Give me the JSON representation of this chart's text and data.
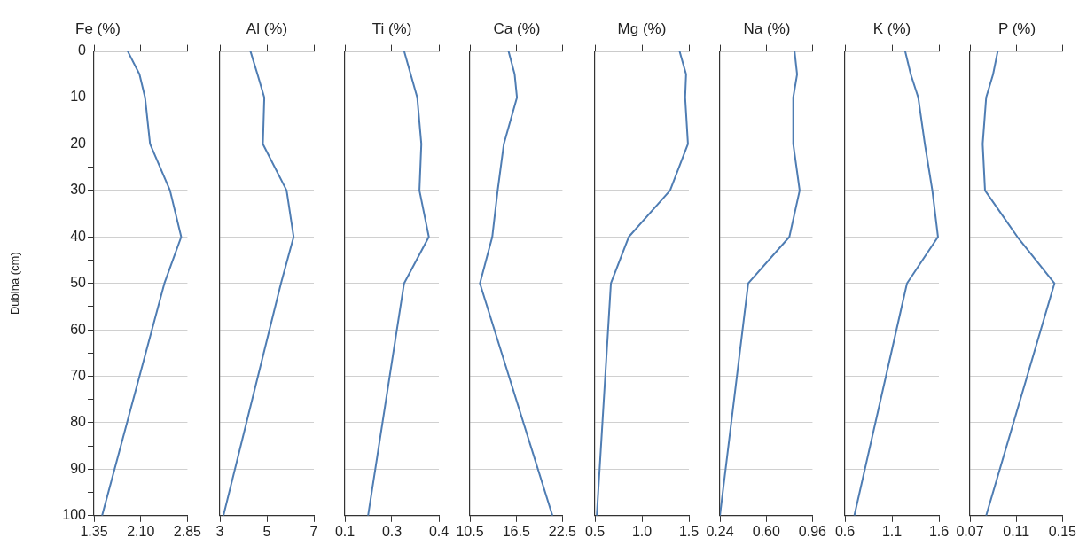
{
  "chart_data": [
    {
      "type": "line",
      "title": "Fe (%)",
      "ylabel": "Dubina (cm)",
      "orientation": "horizontal",
      "x": [
        0,
        5,
        10,
        20,
        30,
        40,
        50,
        100
      ],
      "color": "#4f7db3",
      "values": [
        1.89,
        2.08,
        2.17,
        2.25,
        2.57,
        2.75,
        2.48,
        1.48
      ],
      "xlim": [
        1.35,
        2.85
      ],
      "xticks": [
        1.35,
        {
          "value": 2.1,
          "label": "2.10"
        },
        2.85
      ],
      "ylim": [
        100,
        0
      ],
      "yticks": [
        0,
        {
          "value": 5,
          "label": null
        },
        10,
        {
          "value": 15,
          "label": null
        },
        20,
        {
          "value": 25,
          "label": null
        },
        30,
        {
          "value": 35,
          "label": null
        },
        40,
        {
          "value": 45,
          "label": null
        },
        50,
        {
          "value": 55,
          "label": null
        },
        60,
        {
          "value": 65,
          "label": null
        },
        70,
        {
          "value": 75,
          "label": null
        },
        80,
        {
          "value": 85,
          "label": null
        },
        90,
        {
          "value": 95,
          "label": null
        },
        100
      ],
      "grid": "y"
    },
    {
      "type": "line",
      "title": "Al (%)",
      "orientation": "horizontal",
      "x": [
        0,
        5,
        10,
        20,
        30,
        40,
        50,
        100
      ],
      "color": "#4f7db3",
      "values": [
        4.3,
        4.6,
        4.89,
        4.83,
        5.84,
        6.14,
        5.6,
        3.15
      ],
      "xlim": [
        3,
        7
      ],
      "xticks": [
        3,
        5,
        7
      ],
      "ylim": [
        100,
        0
      ],
      "yticks": [
        0,
        10,
        20,
        30,
        40,
        50,
        60,
        70,
        80,
        90,
        100
      ],
      "grid": "y",
      "tick_labels": "x"
    },
    {
      "type": "line",
      "title": "Ti (%)",
      "orientation": "horizontal",
      "x": [
        0,
        5,
        10,
        20,
        30,
        40,
        50,
        100
      ],
      "color": "#4f7db3",
      "values": [
        0.289,
        0.31,
        0.331,
        0.344,
        0.338,
        0.368,
        0.289,
        0.174
      ],
      "xlim": [
        0.1,
        0.4
      ],
      "xticks": [
        0.1,
        {
          "value": 0.25,
          "label": "0.3"
        },
        0.4
      ],
      "ylim": [
        100,
        0
      ],
      "yticks": [
        0,
        10,
        20,
        30,
        40,
        50,
        60,
        70,
        80,
        90,
        100
      ],
      "grid": "y",
      "tick_labels": "x"
    },
    {
      "type": "line",
      "title": "Ca (%)",
      "orientation": "horizontal",
      "x": [
        0,
        5,
        10,
        20,
        30,
        40,
        50,
        100
      ],
      "color": "#4f7db3",
      "values": [
        15.5,
        16.3,
        16.6,
        14.9,
        14.1,
        13.4,
        11.8,
        21.2
      ],
      "xlim": [
        10.5,
        22.5
      ],
      "xticks": [
        10.5,
        16.5,
        22.5
      ],
      "ylim": [
        100,
        0
      ],
      "yticks": [
        0,
        10,
        20,
        30,
        40,
        50,
        60,
        70,
        80,
        90,
        100
      ],
      "grid": "y",
      "tick_labels": "x"
    },
    {
      "type": "line",
      "title": "Mg (%)",
      "orientation": "horizontal",
      "x": [
        0,
        5,
        10,
        20,
        30,
        40,
        50,
        100
      ],
      "color": "#4f7db3",
      "values": [
        1.4,
        1.47,
        1.46,
        1.49,
        1.3,
        0.86,
        0.67,
        0.52
      ],
      "xlim": [
        0.5,
        1.5
      ],
      "xticks": [
        0.5,
        {
          "value": 1,
          "label": "1.0"
        },
        1.5
      ],
      "ylim": [
        100,
        0
      ],
      "yticks": [
        0,
        10,
        20,
        30,
        40,
        50,
        60,
        70,
        80,
        90,
        100
      ],
      "grid": "y",
      "tick_labels": "x"
    },
    {
      "type": "line",
      "title": "Na (%)",
      "orientation": "horizontal",
      "x": [
        0,
        5,
        10,
        20,
        30,
        40,
        50,
        100
      ],
      "color": "#4f7db3",
      "values": [
        0.82,
        0.84,
        0.81,
        0.81,
        0.86,
        0.78,
        0.46,
        0.24
      ],
      "xlim": [
        0.24,
        0.96
      ],
      "xticks": [
        0.24,
        {
          "value": 0.6,
          "label": "0.60"
        },
        0.96
      ],
      "ylim": [
        100,
        0
      ],
      "yticks": [
        0,
        10,
        20,
        30,
        40,
        50,
        60,
        70,
        80,
        90,
        100
      ],
      "grid": "y",
      "tick_labels": "x"
    },
    {
      "type": "line",
      "title": "K (%)",
      "orientation": "horizontal",
      "x": [
        0,
        5,
        10,
        20,
        30,
        40,
        50,
        100
      ],
      "color": "#4f7db3",
      "values": [
        1.24,
        1.3,
        1.38,
        1.45,
        1.53,
        1.59,
        1.26,
        0.7
      ],
      "xlim": [
        0.6,
        1.6
      ],
      "xticks": [
        0.6,
        1.1,
        1.6
      ],
      "ylim": [
        100,
        0
      ],
      "yticks": [
        0,
        10,
        20,
        30,
        40,
        50,
        60,
        70,
        80,
        90,
        100
      ],
      "grid": "y",
      "tick_labels": "x"
    },
    {
      "type": "line",
      "title": "P (%)",
      "orientation": "horizontal",
      "x": [
        0,
        5,
        10,
        20,
        30,
        40,
        50,
        100
      ],
      "color": "#4f7db3",
      "values": [
        0.094,
        0.09,
        0.084,
        0.081,
        0.083,
        0.111,
        0.143,
        0.084
      ],
      "xlim": [
        0.07,
        0.15
      ],
      "xticks": [
        0.07,
        0.11,
        0.15
      ],
      "ylim": [
        100,
        0
      ],
      "yticks": [
        0,
        10,
        20,
        30,
        40,
        50,
        60,
        70,
        80,
        90,
        100
      ],
      "grid": "y",
      "tick_labels": "x"
    }
  ]
}
